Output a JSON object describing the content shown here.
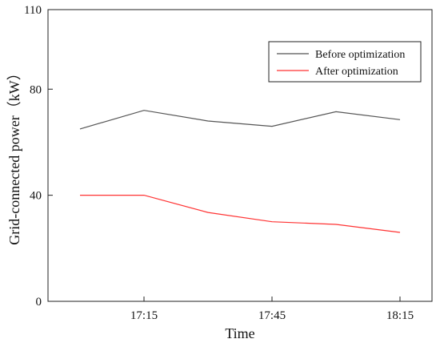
{
  "chart_data": {
    "type": "line",
    "xlabel": "Time",
    "ylabel": "Grid-connected power（kW）",
    "x_tick_labels": [
      {
        "x": 1,
        "label": "17:15"
      },
      {
        "x": 3,
        "label": "17:45"
      },
      {
        "x": 5,
        "label": "18:15"
      }
    ],
    "xlim": [
      -0.5,
      5.5
    ],
    "y_ticks": [
      0,
      40,
      80,
      110
    ],
    "ylim": [
      0,
      110
    ],
    "grid": false,
    "legend_position": "top-right",
    "series": [
      {
        "name": "Before optimization",
        "color": "#555555",
        "x": [
          0,
          1,
          2,
          3,
          4,
          5
        ],
        "values": [
          65,
          72,
          68,
          66,
          71.5,
          68.5
        ]
      },
      {
        "name": "After optimization",
        "color": "#ff3333",
        "x": [
          0,
          1,
          2,
          3,
          4,
          5
        ],
        "values": [
          40,
          40,
          33.5,
          30,
          29,
          26
        ]
      }
    ]
  }
}
